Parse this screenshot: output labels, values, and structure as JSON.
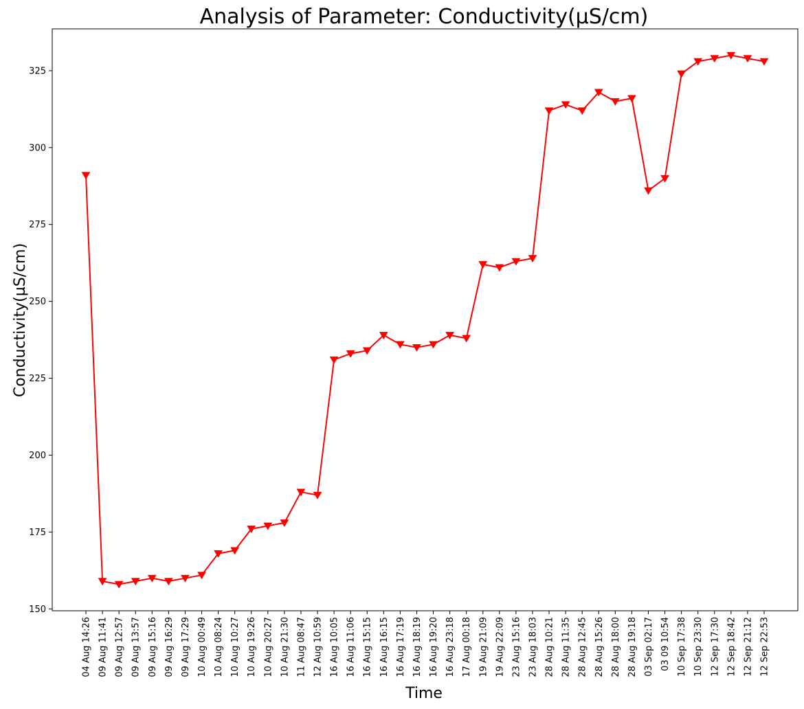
{
  "chart_data": {
    "type": "line",
    "title": "Analysis of Parameter: Conductivity(µS/cm)",
    "xlabel": "Time",
    "ylabel": "Conductivity(µS/cm)",
    "ylim": [
      149.4,
      338.6
    ],
    "yticks": [
      150,
      175,
      200,
      225,
      250,
      275,
      300,
      325
    ],
    "grid": false,
    "legend": "none",
    "categories": [
      "04 Aug 14:26",
      "09 Aug 11:41",
      "09 Aug 12:57",
      "09 Aug 13:57",
      "09 Aug 15:16",
      "09 Aug 16:29",
      "09 Aug 17:29",
      "10 Aug 00:49",
      "10 Aug 08:24",
      "10 Aug 10:27",
      "10 Aug 19:26",
      "10 Aug 20:27",
      "10 Aug 21:30",
      "11 Aug 08:47",
      "12 Aug 10:59",
      "16 Aug 10:05",
      "16 Aug 11:06",
      "16 Aug 15:15",
      "16 Aug 16:15",
      "16 Aug 17:19",
      "16 Aug 18:19",
      "16 Aug 19:20",
      "16 Aug 23:18",
      "17 Aug 00:18",
      "19 Aug 21:09",
      "19 Aug 22:09",
      "23 Aug 15:16",
      "23 Aug 18:03",
      "28 Aug 10:21",
      "28 Aug 11:35",
      "28 Aug 12:45",
      "28 Aug 15:26",
      "28 Aug 18:00",
      "28 Aug 19:18",
      "03 Sep 02:17",
      "03 09 10:54",
      "10 Sep 17:38",
      "10 Sep 23:30",
      "12 Sep 17:30",
      "12 Sep 18:42",
      "12 Sep 21:12",
      "12 Sep 22:53"
    ],
    "series": [
      {
        "values": [
          291,
          159,
          158,
          159,
          160,
          159,
          160,
          161,
          168,
          169,
          176,
          177,
          178,
          188,
          187,
          231,
          233,
          234,
          239,
          236,
          235,
          236,
          239,
          238,
          262,
          261,
          263,
          264,
          312,
          314,
          312,
          318,
          315,
          316,
          286,
          290,
          324,
          328,
          329,
          330,
          329,
          328
        ],
        "color": "#ff0000",
        "marker": "triangle-down"
      }
    ]
  }
}
